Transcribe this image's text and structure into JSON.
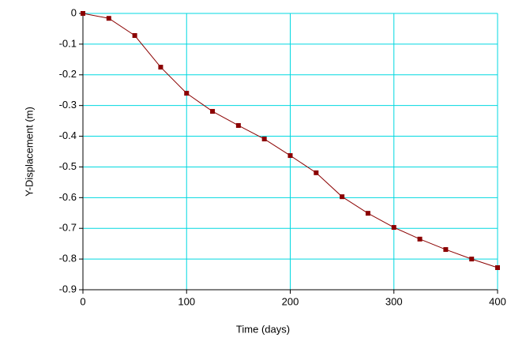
{
  "chart_data": {
    "type": "line",
    "x_label": "Time (days)",
    "y_label": "Y-Displacement (m)",
    "x": [
      0,
      25,
      50,
      75,
      100,
      125,
      150,
      175,
      200,
      225,
      250,
      275,
      300,
      325,
      350,
      375,
      400
    ],
    "series": [
      {
        "color": "#8b0000",
        "values": [
          0,
          -0.016,
          -0.072,
          -0.175,
          -0.26,
          -0.319,
          -0.365,
          -0.409,
          -0.463,
          -0.519,
          -0.597,
          -0.651,
          -0.697,
          -0.735,
          -0.769,
          -0.8,
          -0.828
        ]
      }
    ],
    "xlim": [
      0,
      400
    ],
    "xticks": [
      0,
      100,
      200,
      300,
      400
    ],
    "ylim": [
      -0.9,
      0
    ],
    "yticks": [
      0,
      -0.1,
      -0.2,
      -0.3,
      -0.4,
      -0.5,
      -0.6,
      -0.7,
      -0.8,
      -0.9
    ],
    "grid": true,
    "grid_color": "#00d8e0"
  }
}
